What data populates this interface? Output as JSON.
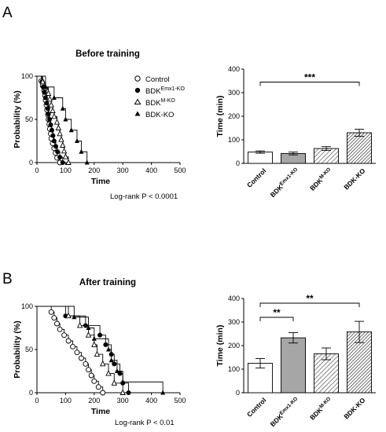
{
  "panels": [
    {
      "letter": "A",
      "survival": {
        "type": "line",
        "title": "Before training",
        "xlabel": "Time",
        "ylabel": "Probability (%)",
        "xlim": [
          0,
          500
        ],
        "ylim": [
          0,
          100
        ],
        "xticks": [
          0,
          100,
          200,
          300,
          400,
          500
        ],
        "yticks": [
          0,
          50,
          100
        ],
        "stat_text": "Log-rank P < 0.0001",
        "series": [
          {
            "key": "control",
            "marker": "open-circle",
            "events": [
              15,
              20,
              25,
              28,
              30,
              33,
              35,
              38,
              40,
              43,
              45,
              48,
              50,
              55,
              60,
              65,
              70,
              80
            ]
          },
          {
            "key": "emx1",
            "marker": "filled-circle",
            "events": [
              18,
              22,
              26,
              30,
              34,
              38,
              40,
              44,
              48,
              52,
              56,
              60,
              66,
              72,
              80,
              90
            ]
          },
          {
            "key": "mko",
            "marker": "open-triangle",
            "events": [
              20,
              30,
              40,
              45,
              50,
              55,
              60,
              70,
              75,
              80,
              85,
              90,
              95,
              100,
              110
            ]
          },
          {
            "key": "bdk",
            "marker": "filled-triangle",
            "events": [
              30,
              60,
              90,
              100,
              120,
              140,
              155,
              175
            ]
          }
        ]
      },
      "bar": {
        "type": "bar",
        "ylabel": "Time (min)",
        "ylim": [
          0,
          400
        ],
        "yticks": [
          0,
          100,
          200,
          300,
          400
        ],
        "categories": [
          "Control",
          "BDK",
          "BDK",
          "BDK-KO"
        ],
        "cat_sup": [
          "",
          "Emx1-KO",
          "M-KO",
          ""
        ],
        "values": [
          48,
          42,
          63,
          130
        ],
        "errors": [
          5,
          6,
          8,
          15
        ],
        "fills": [
          "white",
          "gray",
          "hatch",
          "hatch-dense"
        ],
        "sig": [
          {
            "from": 0,
            "to": 3,
            "label": "***",
            "y": 345
          }
        ]
      }
    },
    {
      "letter": "B",
      "survival": {
        "type": "line",
        "title": "After training",
        "xlabel": "Time",
        "ylabel": "Probability (%)",
        "xlim": [
          0,
          500
        ],
        "ylim": [
          0,
          100
        ],
        "xticks": [
          0,
          100,
          200,
          300,
          400,
          500
        ],
        "yticks": [
          0,
          50,
          100
        ],
        "stat_text": "Log-rank P < 0.01",
        "series": [
          {
            "key": "control",
            "marker": "open-circle",
            "events": [
              50,
              60,
              70,
              80,
              95,
              110,
              125,
              140,
              155,
              170,
              180,
              190,
              200,
              215,
              230
            ]
          },
          {
            "key": "emx1",
            "marker": "filled-circle",
            "events": [
              100,
              170,
              220,
              240,
              260,
              270,
              290,
              300,
              320
            ]
          },
          {
            "key": "mko",
            "marker": "open-triangle",
            "events": [
              110,
              150,
              180,
              200,
              210,
              230,
              250,
              270,
              300
            ]
          },
          {
            "key": "bdk",
            "marker": "filled-triangle",
            "events": [
              130,
              180,
              200,
              250,
              260,
              280,
              300,
              440
            ]
          }
        ]
      },
      "bar": {
        "type": "bar",
        "ylabel": "Time (min)",
        "ylim": [
          0,
          400
        ],
        "yticks": [
          0,
          100,
          200,
          300,
          400
        ],
        "categories": [
          "Control",
          "BDK",
          "BDK",
          "BDK-KO"
        ],
        "cat_sup": [
          "",
          "Emx1-KO",
          "M-KO",
          ""
        ],
        "values": [
          125,
          233,
          165,
          258
        ],
        "errors": [
          20,
          22,
          25,
          45
        ],
        "fills": [
          "white",
          "gray",
          "hatch",
          "hatch-dense"
        ],
        "sig": [
          {
            "from": 0,
            "to": 1,
            "label": "**",
            "y": 320
          },
          {
            "from": 0,
            "to": 3,
            "label": "**",
            "y": 380
          }
        ]
      }
    }
  ],
  "legend": [
    {
      "marker": "open-circle",
      "label": "Control",
      "sup": ""
    },
    {
      "marker": "filled-circle",
      "label": "BDK",
      "sup": "Emx1-KO"
    },
    {
      "marker": "open-triangle",
      "label": "BDK",
      "sup": "M-KO"
    },
    {
      "marker": "filled-triangle",
      "label": "BDK-KO",
      "sup": ""
    }
  ]
}
